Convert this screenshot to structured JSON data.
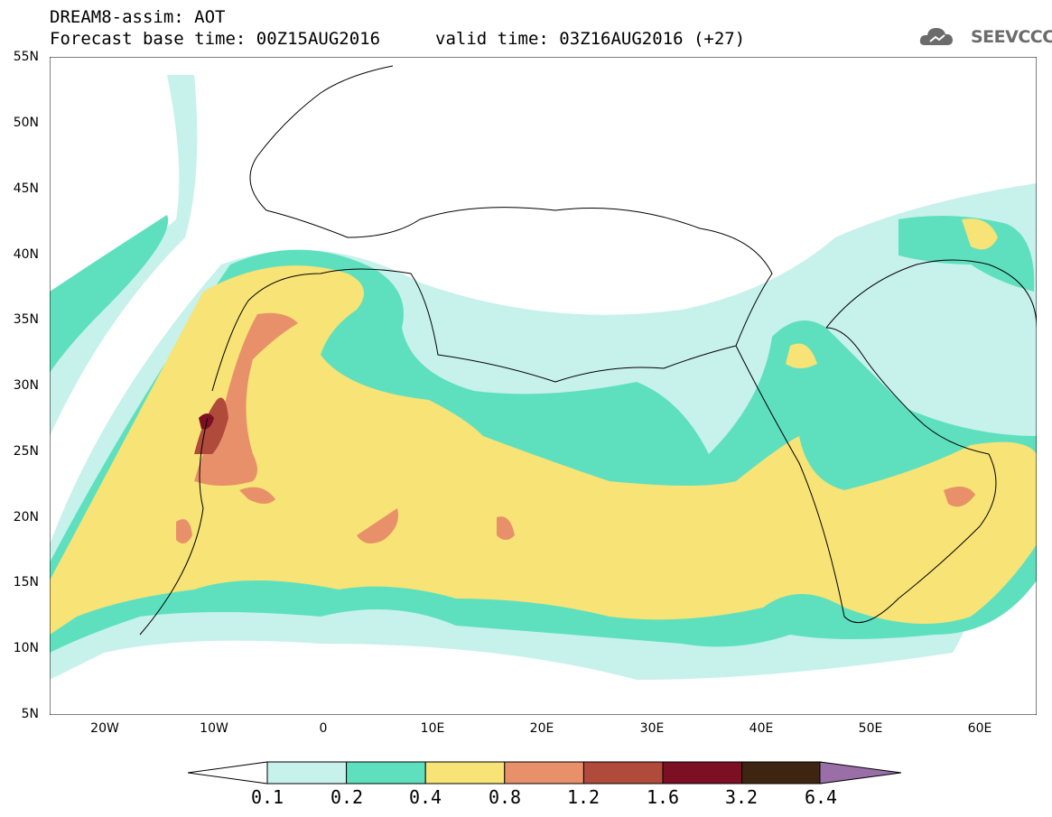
{
  "header": {
    "line1": "DREAM8-assim: AOT",
    "base_time": "Forecast base time: 00Z15AUG2016",
    "valid_time": "valid time: 03Z16AUG2016 (+27)"
  },
  "logo": {
    "text": "SEEVCCC",
    "icon": "cloud-logo-icon"
  },
  "map": {
    "y_ticks": [
      "55N",
      "50N",
      "45N",
      "40N",
      "35N",
      "30N",
      "25N",
      "20N",
      "15N",
      "10N",
      "5N"
    ],
    "x_ticks": [
      "20W",
      "10W",
      "0",
      "10E",
      "20E",
      "30E",
      "40E",
      "50E",
      "60E"
    ],
    "lon_range": [
      -25,
      65
    ],
    "lat_range": [
      5,
      55
    ]
  },
  "colorbar": {
    "labels": [
      "0.1",
      "0.2",
      "0.4",
      "0.8",
      "1.2",
      "1.6",
      "3.2",
      "6.4"
    ],
    "colors": [
      "#c7f1eb",
      "#5ee0bf",
      "#f7e376",
      "#e8906a",
      "#b04a3a",
      "#7c0f24",
      "#3e2512",
      "#9a6fa8"
    ]
  }
}
